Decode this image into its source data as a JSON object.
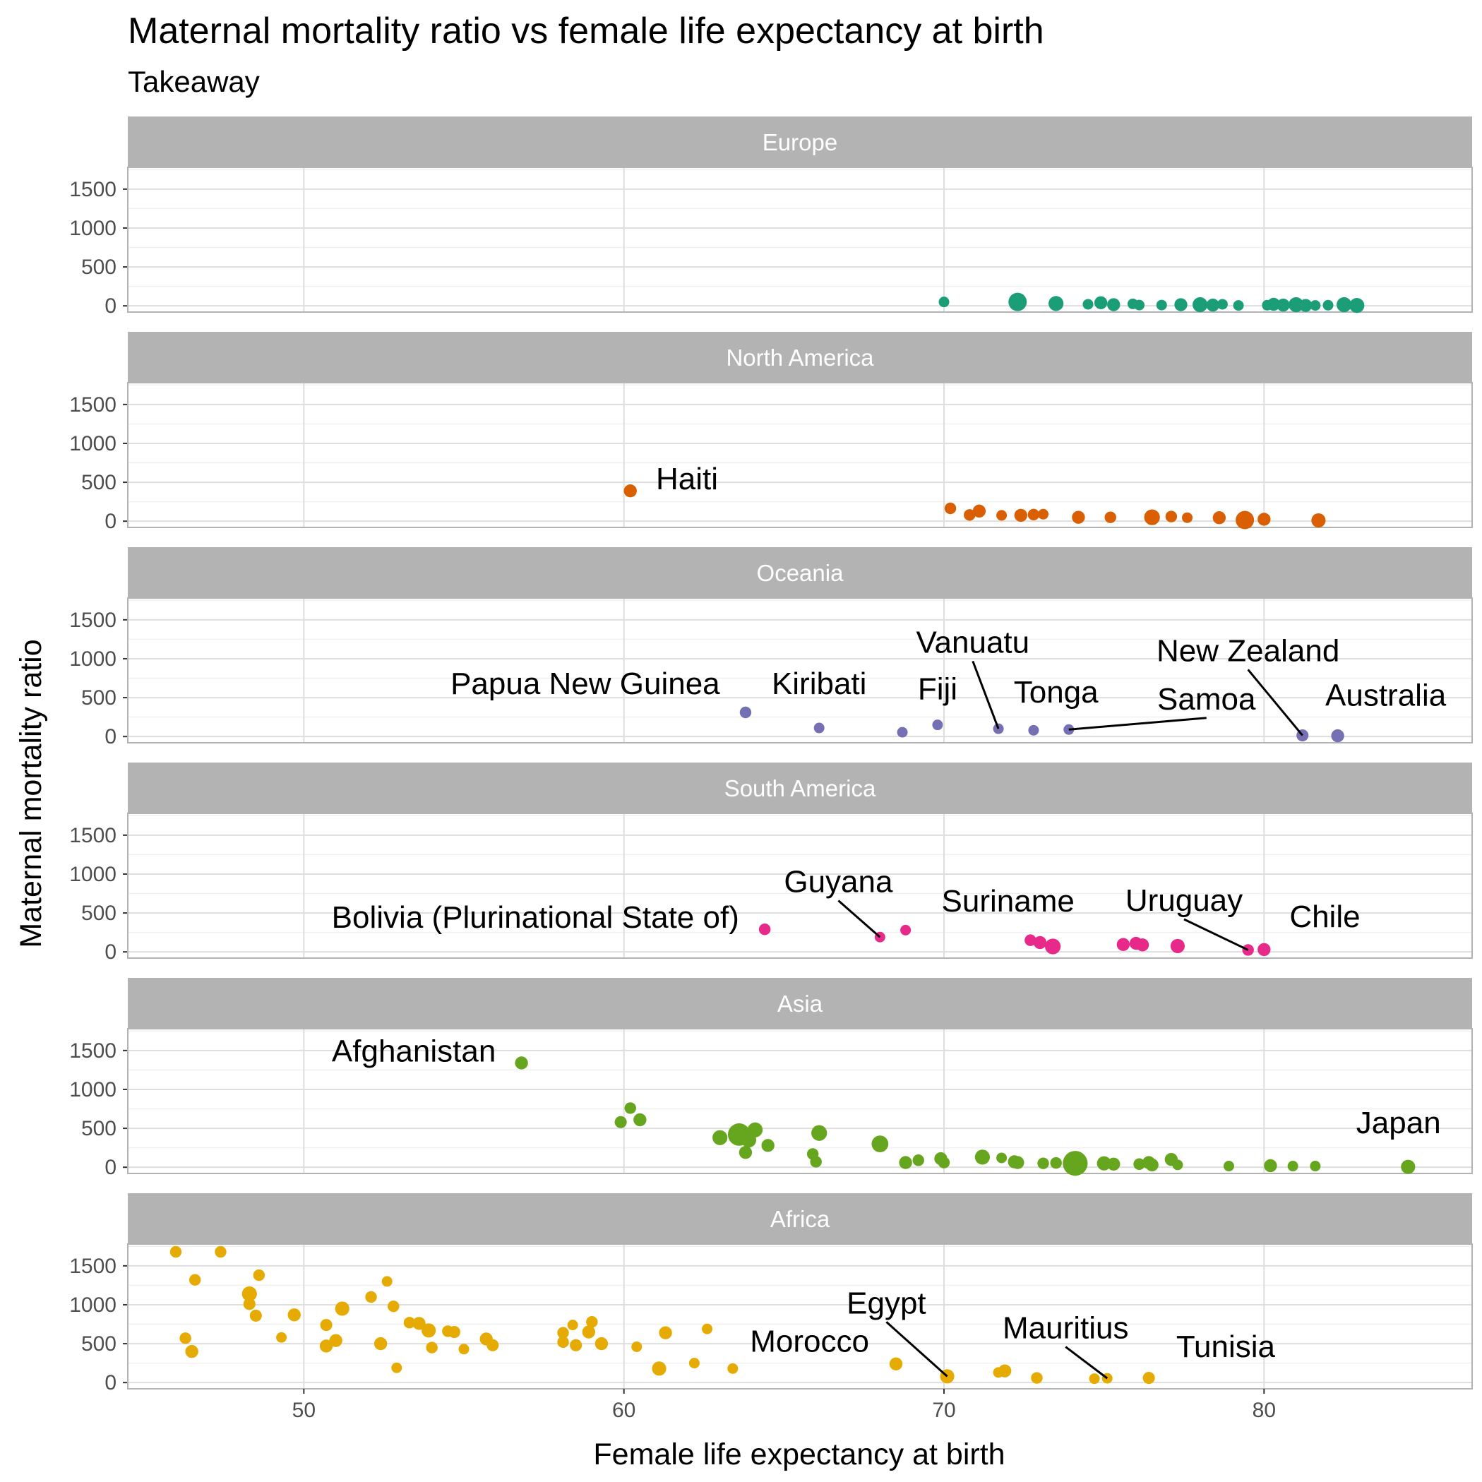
{
  "chart_data": {
    "type": "scatter",
    "title": "Maternal mortality ratio vs female life expectancy at birth",
    "subtitle": "Takeaway",
    "xlabel": "Female life expectancy at birth",
    "ylabel": "Maternal mortality ratio",
    "xlim": [
      44.5,
      86.5
    ],
    "ylim": [
      -80,
      1780
    ],
    "x_ticks": [
      50,
      60,
      70,
      80
    ],
    "y_ticks": [
      0,
      500,
      1000,
      1500
    ],
    "grid": true,
    "legend": "none",
    "panels": [
      {
        "name": "Europe",
        "color": "#1b9e77",
        "points": [
          {
            "x": 70.0,
            "y": 50,
            "s": 1
          },
          {
            "x": 72.3,
            "y": 50,
            "s": 3
          },
          {
            "x": 73.5,
            "y": 30,
            "s": 2
          },
          {
            "x": 74.5,
            "y": 20,
            "s": 1
          },
          {
            "x": 74.9,
            "y": 40,
            "s": 1.5
          },
          {
            "x": 75.3,
            "y": 15,
            "s": 1.5
          },
          {
            "x": 75.9,
            "y": 25,
            "s": 1
          },
          {
            "x": 76.1,
            "y": 10,
            "s": 1
          },
          {
            "x": 76.8,
            "y": 10,
            "s": 1
          },
          {
            "x": 77.4,
            "y": 15,
            "s": 1.5
          },
          {
            "x": 78.0,
            "y": 15,
            "s": 2
          },
          {
            "x": 78.4,
            "y": 10,
            "s": 1.5
          },
          {
            "x": 78.7,
            "y": 20,
            "s": 1
          },
          {
            "x": 79.2,
            "y": 5,
            "s": 1
          },
          {
            "x": 80.1,
            "y": 8,
            "s": 1
          },
          {
            "x": 80.3,
            "y": 20,
            "s": 1.5
          },
          {
            "x": 80.6,
            "y": 10,
            "s": 1.5
          },
          {
            "x": 81.0,
            "y": 15,
            "s": 2
          },
          {
            "x": 81.3,
            "y": 5,
            "s": 1.5
          },
          {
            "x": 81.6,
            "y": 5,
            "s": 1
          },
          {
            "x": 82.0,
            "y": 8,
            "s": 1
          },
          {
            "x": 82.5,
            "y": 15,
            "s": 2
          },
          {
            "x": 82.9,
            "y": 5,
            "s": 2
          }
        ],
        "labels": []
      },
      {
        "name": "North America",
        "color": "#d95f02",
        "points": [
          {
            "x": 60.2,
            "y": 390,
            "s": 1.5
          },
          {
            "x": 70.2,
            "y": 165,
            "s": 1.2
          },
          {
            "x": 70.8,
            "y": 80,
            "s": 1.2
          },
          {
            "x": 71.1,
            "y": 130,
            "s": 1.5
          },
          {
            "x": 71.8,
            "y": 75,
            "s": 1
          },
          {
            "x": 72.4,
            "y": 75,
            "s": 1.5
          },
          {
            "x": 72.8,
            "y": 85,
            "s": 1.2
          },
          {
            "x": 73.1,
            "y": 90,
            "s": 1
          },
          {
            "x": 74.2,
            "y": 50,
            "s": 1.5
          },
          {
            "x": 75.2,
            "y": 50,
            "s": 1.2
          },
          {
            "x": 76.5,
            "y": 50,
            "s": 2.2
          },
          {
            "x": 77.1,
            "y": 60,
            "s": 1.2
          },
          {
            "x": 77.6,
            "y": 45,
            "s": 1
          },
          {
            "x": 78.6,
            "y": 45,
            "s": 1.5
          },
          {
            "x": 79.4,
            "y": 15,
            "s": 3
          },
          {
            "x": 80.0,
            "y": 25,
            "s": 1.5
          },
          {
            "x": 81.7,
            "y": 10,
            "s": 1.8
          }
        ],
        "labels": [
          {
            "text": "Haiti",
            "px": 60.2,
            "py": 390,
            "lx": 61.0,
            "ly": 390,
            "anchor": "start",
            "line": false
          }
        ]
      },
      {
        "name": "Oceania",
        "color": "#7570b3",
        "points": [
          {
            "x": 63.8,
            "y": 310,
            "s": 1.2
          },
          {
            "x": 66.1,
            "y": 110,
            "s": 1
          },
          {
            "x": 68.7,
            "y": 55,
            "s": 1
          },
          {
            "x": 69.8,
            "y": 150,
            "s": 1
          },
          {
            "x": 71.7,
            "y": 100,
            "s": 1
          },
          {
            "x": 72.8,
            "y": 80,
            "s": 1
          },
          {
            "x": 73.9,
            "y": 90,
            "s": 1
          },
          {
            "x": 81.2,
            "y": 15,
            "s": 1.3
          },
          {
            "x": 82.3,
            "y": 10,
            "s": 1.5
          }
        ],
        "labels": [
          {
            "text": "Papua New Guinea",
            "px": 63.8,
            "py": 310,
            "lx": 63.0,
            "ly": 530,
            "anchor": "end",
            "line": false
          },
          {
            "text": "Kiribati",
            "px": 66.1,
            "py": 110,
            "lx": 66.1,
            "ly": 530,
            "anchor": "middle",
            "line": false
          },
          {
            "text": "Fiji",
            "px": 69.8,
            "py": 150,
            "lx": 69.8,
            "ly": 460,
            "anchor": "middle",
            "line": false
          },
          {
            "text": "Vanuatu",
            "px": 71.7,
            "py": 100,
            "lx": 70.9,
            "ly": 1060,
            "anchor": "middle",
            "line": true
          },
          {
            "text": "Tonga",
            "px": 72.8,
            "py": 80,
            "lx": 73.5,
            "ly": 420,
            "anchor": "middle",
            "line": false
          },
          {
            "text": "Samoa",
            "px": 73.9,
            "py": 90,
            "lx": 78.2,
            "ly": 330,
            "anchor": "middle",
            "line": true
          },
          {
            "text": "New Zealand",
            "px": 81.2,
            "py": 15,
            "lx": 79.5,
            "ly": 950,
            "anchor": "middle",
            "line": true
          },
          {
            "text": "Australia",
            "px": 82.3,
            "py": 10,
            "lx": 83.8,
            "ly": 380,
            "anchor": "middle",
            "line": false
          }
        ]
      },
      {
        "name": "South America",
        "color": "#e7298a",
        "points": [
          {
            "x": 64.4,
            "y": 290,
            "s": 1.2
          },
          {
            "x": 68.0,
            "y": 190,
            "s": 1
          },
          {
            "x": 68.8,
            "y": 280,
            "s": 1
          },
          {
            "x": 72.7,
            "y": 150,
            "s": 1.2
          },
          {
            "x": 73.0,
            "y": 120,
            "s": 1.5
          },
          {
            "x": 73.4,
            "y": 70,
            "s": 2.2
          },
          {
            "x": 75.6,
            "y": 95,
            "s": 1.5
          },
          {
            "x": 76.0,
            "y": 110,
            "s": 1.5
          },
          {
            "x": 76.2,
            "y": 90,
            "s": 1.5
          },
          {
            "x": 77.3,
            "y": 75,
            "s": 1.8
          },
          {
            "x": 79.5,
            "y": 25,
            "s": 1.2
          },
          {
            "x": 80.0,
            "y": 30,
            "s": 1.5
          }
        ],
        "labels": [
          {
            "text": "Bolivia (Plurinational State of)",
            "px": 64.4,
            "py": 290,
            "lx": 63.6,
            "ly": 290,
            "anchor": "end",
            "line": false
          },
          {
            "text": "Guyana",
            "px": 68.0,
            "py": 190,
            "lx": 66.7,
            "ly": 750,
            "anchor": "middle",
            "line": true
          },
          {
            "text": "Suriname",
            "px": 68.8,
            "py": 280,
            "lx": 72.0,
            "ly": 500,
            "anchor": "middle",
            "line": false
          },
          {
            "text": "Uruguay",
            "px": 79.5,
            "py": 25,
            "lx": 77.5,
            "ly": 510,
            "anchor": "middle",
            "line": true
          },
          {
            "text": "Chile",
            "px": 80.0,
            "py": 30,
            "lx": 81.9,
            "ly": 300,
            "anchor": "middle",
            "line": false
          }
        ]
      },
      {
        "name": "Asia",
        "color": "#66a61e",
        "points": [
          {
            "x": 56.8,
            "y": 1340,
            "s": 1.5
          },
          {
            "x": 60.2,
            "y": 760,
            "s": 1.2
          },
          {
            "x": 59.9,
            "y": 580,
            "s": 1.3
          },
          {
            "x": 60.5,
            "y": 610,
            "s": 1.5
          },
          {
            "x": 63.0,
            "y": 380,
            "s": 2
          },
          {
            "x": 63.6,
            "y": 420,
            "s": 4.5
          },
          {
            "x": 63.9,
            "y": 350,
            "s": 2
          },
          {
            "x": 64.1,
            "y": 480,
            "s": 2
          },
          {
            "x": 63.8,
            "y": 190,
            "s": 1.5
          },
          {
            "x": 64.5,
            "y": 280,
            "s": 1.5
          },
          {
            "x": 65.9,
            "y": 170,
            "s": 1.2
          },
          {
            "x": 66.0,
            "y": 70,
            "s": 1.2
          },
          {
            "x": 66.1,
            "y": 440,
            "s": 2.2
          },
          {
            "x": 68.0,
            "y": 300,
            "s": 2.5
          },
          {
            "x": 68.8,
            "y": 60,
            "s": 1.5
          },
          {
            "x": 69.2,
            "y": 90,
            "s": 1.2
          },
          {
            "x": 69.9,
            "y": 110,
            "s": 1.5
          },
          {
            "x": 70.0,
            "y": 60,
            "s": 1.2
          },
          {
            "x": 71.2,
            "y": 130,
            "s": 2
          },
          {
            "x": 71.8,
            "y": 120,
            "s": 1
          },
          {
            "x": 72.2,
            "y": 70,
            "s": 1.5
          },
          {
            "x": 72.3,
            "y": 60,
            "s": 1.5
          },
          {
            "x": 73.1,
            "y": 50,
            "s": 1.2
          },
          {
            "x": 73.5,
            "y": 55,
            "s": 1.2
          },
          {
            "x": 74.1,
            "y": 50,
            "s": 5.5
          },
          {
            "x": 75.0,
            "y": 50,
            "s": 1.8
          },
          {
            "x": 75.3,
            "y": 40,
            "s": 1.5
          },
          {
            "x": 76.1,
            "y": 40,
            "s": 1.2
          },
          {
            "x": 76.4,
            "y": 60,
            "s": 1.5
          },
          {
            "x": 76.5,
            "y": 30,
            "s": 1.5
          },
          {
            "x": 77.1,
            "y": 100,
            "s": 1.5
          },
          {
            "x": 77.3,
            "y": 30,
            "s": 1
          },
          {
            "x": 78.9,
            "y": 15,
            "s": 1
          },
          {
            "x": 80.2,
            "y": 20,
            "s": 1.5
          },
          {
            "x": 80.9,
            "y": 15,
            "s": 1
          },
          {
            "x": 81.6,
            "y": 15,
            "s": 1
          },
          {
            "x": 84.5,
            "y": 5,
            "s": 1.8
          }
        ],
        "labels": [
          {
            "text": "Afghanistan",
            "px": 56.8,
            "py": 1340,
            "lx": 56.0,
            "ly": 1340,
            "anchor": "end",
            "line": false
          },
          {
            "text": "Japan",
            "px": 84.5,
            "py": 5,
            "lx": 84.2,
            "ly": 420,
            "anchor": "middle",
            "line": false
          }
        ]
      },
      {
        "name": "Africa",
        "color": "#e6ab02",
        "points": [
          {
            "x": 46.0,
            "y": 1680,
            "s": 1.2
          },
          {
            "x": 47.4,
            "y": 1680,
            "s": 1.2
          },
          {
            "x": 46.6,
            "y": 1320,
            "s": 1.2
          },
          {
            "x": 46.3,
            "y": 570,
            "s": 1.2
          },
          {
            "x": 46.5,
            "y": 400,
            "s": 1.5
          },
          {
            "x": 48.3,
            "y": 1140,
            "s": 2
          },
          {
            "x": 48.3,
            "y": 1010,
            "s": 1.3
          },
          {
            "x": 48.5,
            "y": 860,
            "s": 1.3
          },
          {
            "x": 48.6,
            "y": 1380,
            "s": 1.2
          },
          {
            "x": 49.3,
            "y": 580,
            "s": 1
          },
          {
            "x": 49.7,
            "y": 870,
            "s": 1.5
          },
          {
            "x": 50.7,
            "y": 740,
            "s": 1.3
          },
          {
            "x": 50.7,
            "y": 470,
            "s": 1.5
          },
          {
            "x": 51.0,
            "y": 540,
            "s": 1.5
          },
          {
            "x": 51.2,
            "y": 950,
            "s": 1.8
          },
          {
            "x": 52.1,
            "y": 1100,
            "s": 1.2
          },
          {
            "x": 52.4,
            "y": 500,
            "s": 1.5
          },
          {
            "x": 52.6,
            "y": 1300,
            "s": 1
          },
          {
            "x": 52.8,
            "y": 980,
            "s": 1.2
          },
          {
            "x": 52.9,
            "y": 190,
            "s": 1
          },
          {
            "x": 53.3,
            "y": 770,
            "s": 1.2
          },
          {
            "x": 53.6,
            "y": 760,
            "s": 1.5
          },
          {
            "x": 53.9,
            "y": 670,
            "s": 1.8
          },
          {
            "x": 54.0,
            "y": 450,
            "s": 1.2
          },
          {
            "x": 54.5,
            "y": 660,
            "s": 1.2
          },
          {
            "x": 54.7,
            "y": 650,
            "s": 1.3
          },
          {
            "x": 55.0,
            "y": 430,
            "s": 1
          },
          {
            "x": 55.7,
            "y": 560,
            "s": 1.5
          },
          {
            "x": 55.9,
            "y": 480,
            "s": 1.3
          },
          {
            "x": 58.1,
            "y": 640,
            "s": 1.2
          },
          {
            "x": 58.1,
            "y": 520,
            "s": 1.2
          },
          {
            "x": 58.4,
            "y": 740,
            "s": 1
          },
          {
            "x": 58.5,
            "y": 480,
            "s": 1.3
          },
          {
            "x": 58.9,
            "y": 650,
            "s": 1.5
          },
          {
            "x": 59.0,
            "y": 780,
            "s": 1.2
          },
          {
            "x": 59.3,
            "y": 500,
            "s": 1.5
          },
          {
            "x": 60.4,
            "y": 460,
            "s": 1
          },
          {
            "x": 61.1,
            "y": 180,
            "s": 1.8
          },
          {
            "x": 61.3,
            "y": 640,
            "s": 1.5
          },
          {
            "x": 62.2,
            "y": 250,
            "s": 1
          },
          {
            "x": 62.6,
            "y": 690,
            "s": 1
          },
          {
            "x": 63.4,
            "y": 180,
            "s": 1
          },
          {
            "x": 68.5,
            "y": 240,
            "s": 1.5
          },
          {
            "x": 70.1,
            "y": 80,
            "s": 1.8
          },
          {
            "x": 71.7,
            "y": 130,
            "s": 1
          },
          {
            "x": 71.9,
            "y": 150,
            "s": 1.5
          },
          {
            "x": 72.9,
            "y": 60,
            "s": 1.2
          },
          {
            "x": 74.7,
            "y": 50,
            "s": 1
          },
          {
            "x": 75.1,
            "y": 55,
            "s": 1
          },
          {
            "x": 76.4,
            "y": 60,
            "s": 1.3
          }
        ],
        "labels": [
          {
            "text": "Morocco",
            "px": 63.4,
            "py": 180,
            "lx": 65.8,
            "ly": 380,
            "anchor": "middle",
            "line": false
          },
          {
            "text": "Egypt",
            "px": 70.1,
            "py": 80,
            "lx": 68.2,
            "ly": 870,
            "anchor": "middle",
            "line": true
          },
          {
            "text": "Mauritius",
            "px": 75.1,
            "py": 55,
            "lx": 73.8,
            "ly": 550,
            "anchor": "middle",
            "line": true
          },
          {
            "text": "Tunisia",
            "px": 76.4,
            "py": 60,
            "lx": 78.8,
            "ly": 310,
            "anchor": "middle",
            "line": false
          }
        ]
      }
    ]
  }
}
